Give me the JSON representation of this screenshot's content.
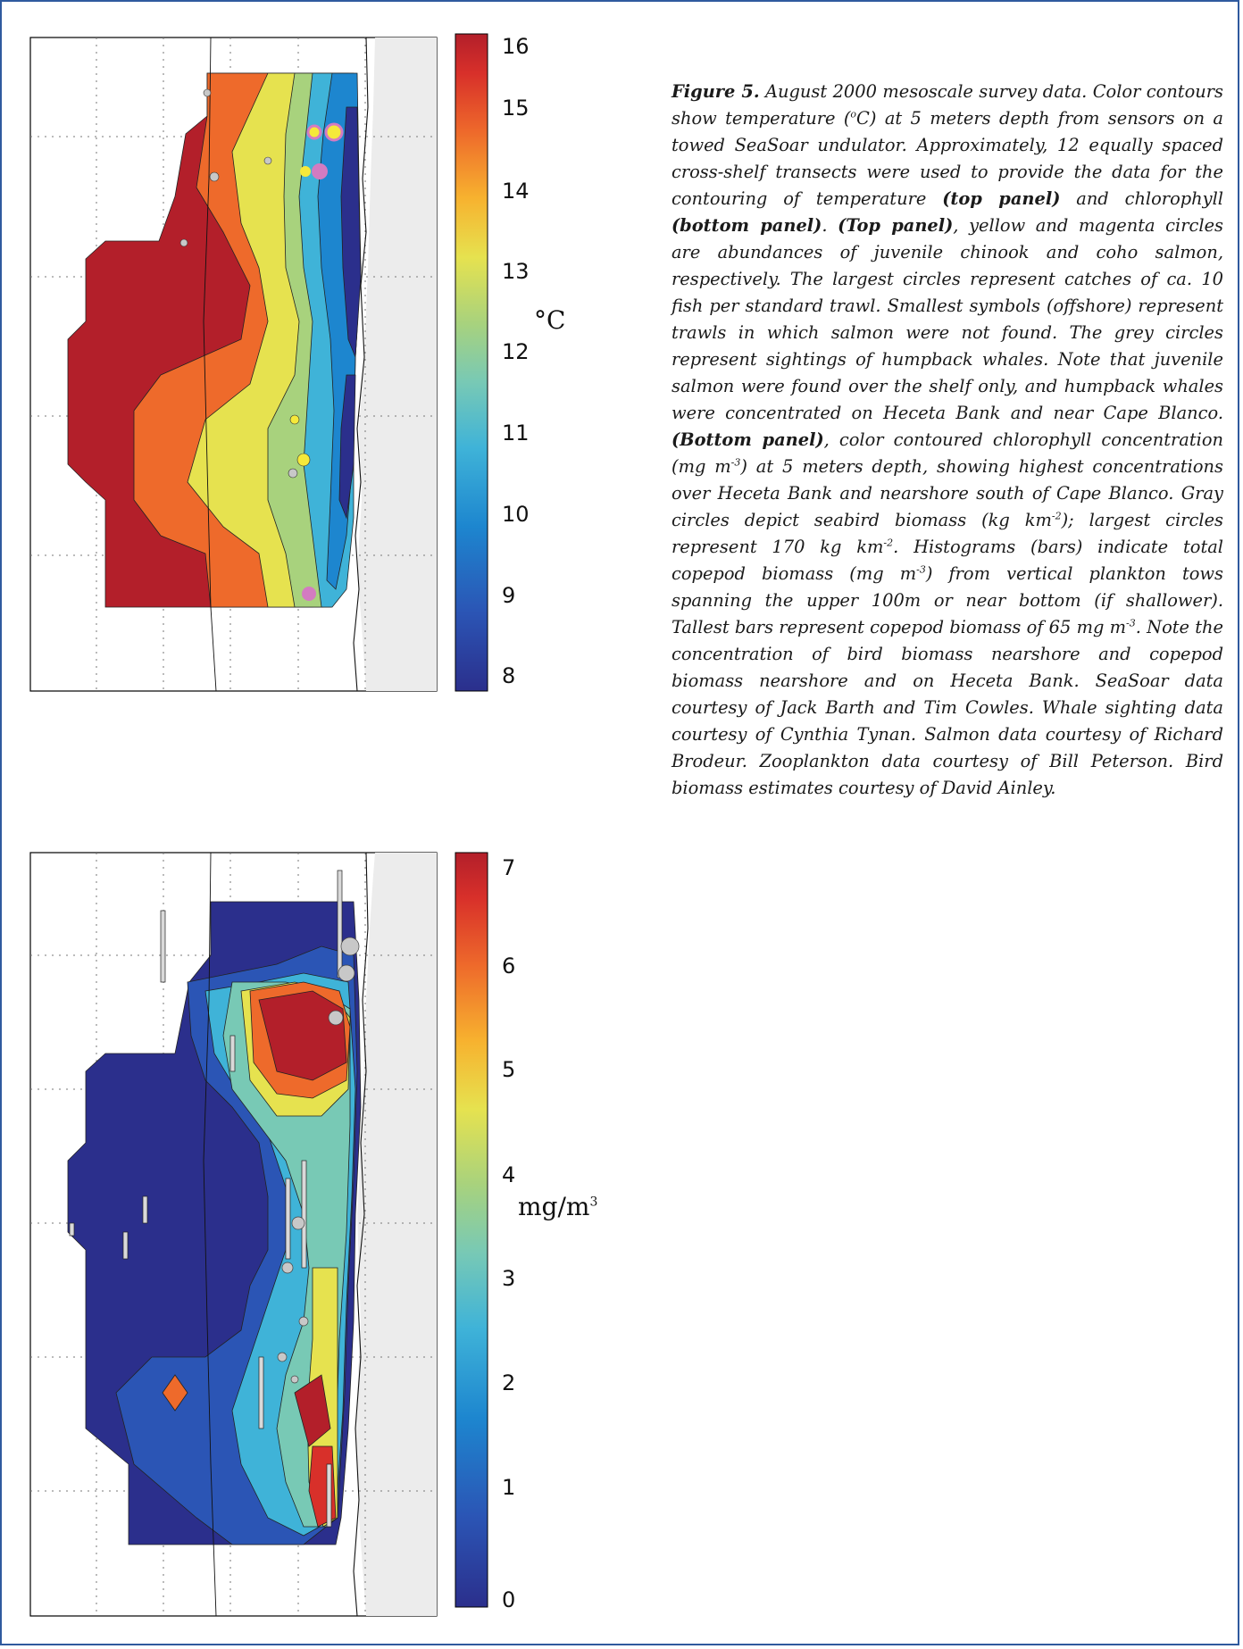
{
  "top_panel": {
    "colorbar": {
      "ticks": [
        "16",
        "15",
        "14",
        "13",
        "12",
        "11",
        "10",
        "9",
        "8"
      ],
      "unit": "°C"
    }
  },
  "bottom_panel": {
    "colorbar": {
      "ticks": [
        "7",
        "6",
        "5",
        "4",
        "3",
        "2",
        "1",
        "0"
      ],
      "unit_base": "mg/m",
      "unit_sup": "3"
    }
  },
  "caption": {
    "figure_label": "Figure 5.",
    "s1": " August 2000 mesoscale survey data. Color contours show temperature (",
    "s1_sup": "o",
    "s1b": "C) at 5 meters depth from sensors on a towed SeaSoar undulator. Approximately, 12 equally spaced cross-shelf transects were used to provide the data for the contouring of temperature ",
    "b_top_panel": "(top panel)",
    "s2": " and chlorophyll ",
    "b_bottom_panel": "(bottom panel)",
    "s3": ". ",
    "b_top_panel_2": "(Top panel)",
    "s4": ", yellow and magenta circles are abundances of juvenile chinook and coho salmon, respectively. The largest circles represent catches of ca. 10 fish per standard trawl. Smallest symbols (offshore) represent trawls in which salmon were not found. The grey circles represent sightings of humpback whales. Note that juvenile salmon were found over the shelf only, and humpback whales were concentrated on Heceta Bank and near Cape Blanco. ",
    "b_bottom_panel_2": "(Bottom panel)",
    "s5": ", color contoured chlorophyll concentration (mg m",
    "s5_sup": "-3",
    "s5b": ") at 5 meters depth, showing highest concentrations over Heceta Bank and nearshore south of Cape Blanco. Gray circles depict seabird biomass (kg km",
    "s5c_sup": "-2",
    "s5c": "); largest circles represent 170 kg km",
    "s5d_sup": "-2",
    "s5d": ". Histograms (bars) indicate total copepod biomass (mg m",
    "s5e_sup": "-3",
    "s5e": ") from vertical plankton tows spanning the upper 100m or near bottom (if shallower). Tallest bars represent copepod biomass of 65 mg m",
    "s5f_sup": "-3",
    "s5f": ". Note the concentration of bird biomass nearshore and copepod biomass nearshore and on Heceta Bank. SeaSoar data courtesy of Jack Barth and Tim Cowles. Whale sighting data courtesy of Cynthia Tynan. Salmon data courtesy of Richard Brodeur. Zooplankton data courtesy of Bill Peterson. Bird biomass estimates courtesy of David Ainley."
  },
  "colors": {
    "frame": "#2f5a9e",
    "land": "#ececec",
    "temp_scale": [
      "#2b2f8c",
      "#2b55b5",
      "#1d86cf",
      "#3fb3d8",
      "#78c9b5",
      "#a8d27d",
      "#e6e24f",
      "#f7b22f",
      "#ee6a2b",
      "#d8302a",
      "#b31f2a"
    ],
    "chl_scale": [
      "#2b2f8c",
      "#2b55b5",
      "#1d86cf",
      "#3fb3d8",
      "#78c9b5",
      "#a8d27d",
      "#e6e24f",
      "#f7b22f",
      "#ee6a2b",
      "#d8302a",
      "#b31f2a"
    ],
    "salmon_chinook": "#f5e93a",
    "salmon_coho": "#d37bc1",
    "whale": "#c8c8c8"
  }
}
